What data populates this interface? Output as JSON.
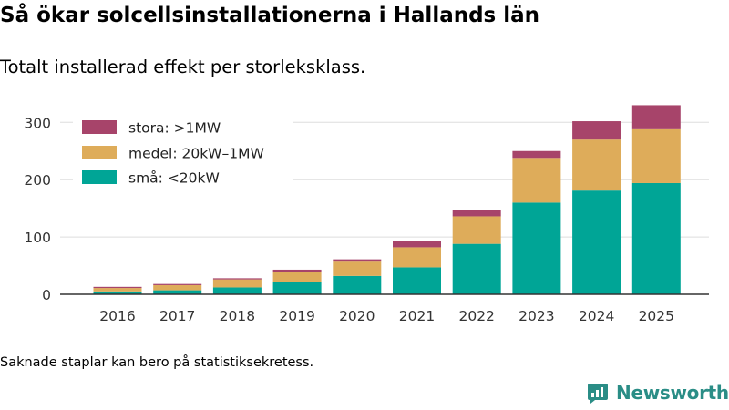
{
  "header": {
    "title": "Så ökar solcellsinstallationerna i Hallands län",
    "subtitle": "Totalt installerad effekt per storleksklass."
  },
  "footer": {
    "note": "Saknade staplar kan bero på statistiksekretess.",
    "brand": "Newsworthy"
  },
  "colors": {
    "sma": "#00a596",
    "medel": "#deac5a",
    "stora": "#a7446a",
    "grid": "#dddddd",
    "axis": "#333333",
    "brand": "#2a8d86"
  },
  "chart_data": {
    "type": "bar",
    "stacked": true,
    "title": "Så ökar solcellsinstallationerna i Hallands län",
    "subtitle": "Totalt installerad effekt per storleksklass.",
    "xlabel": "",
    "ylabel": "",
    "ylim": [
      0,
      330
    ],
    "yticks": [
      0,
      100,
      200,
      300
    ],
    "grid": true,
    "legend_position": "top-left",
    "categories": [
      "2016",
      "2017",
      "2018",
      "2019",
      "2020",
      "2021",
      "2022",
      "2023",
      "2024",
      "2025"
    ],
    "series": [
      {
        "name": "små: <20kW",
        "key": "sma",
        "values": [
          5,
          7,
          12,
          21,
          32,
          47,
          88,
          160,
          181,
          194
        ]
      },
      {
        "name": "medel: 20kW–1MW",
        "key": "medel",
        "values": [
          6,
          9,
          14,
          18,
          25,
          35,
          48,
          78,
          89,
          94
        ]
      },
      {
        "name": "stora: >1MW",
        "key": "stora",
        "values": [
          2,
          2,
          2,
          4,
          4,
          11,
          11,
          12,
          32,
          42
        ]
      }
    ],
    "legend_order": [
      "stora",
      "medel",
      "sma"
    ]
  }
}
